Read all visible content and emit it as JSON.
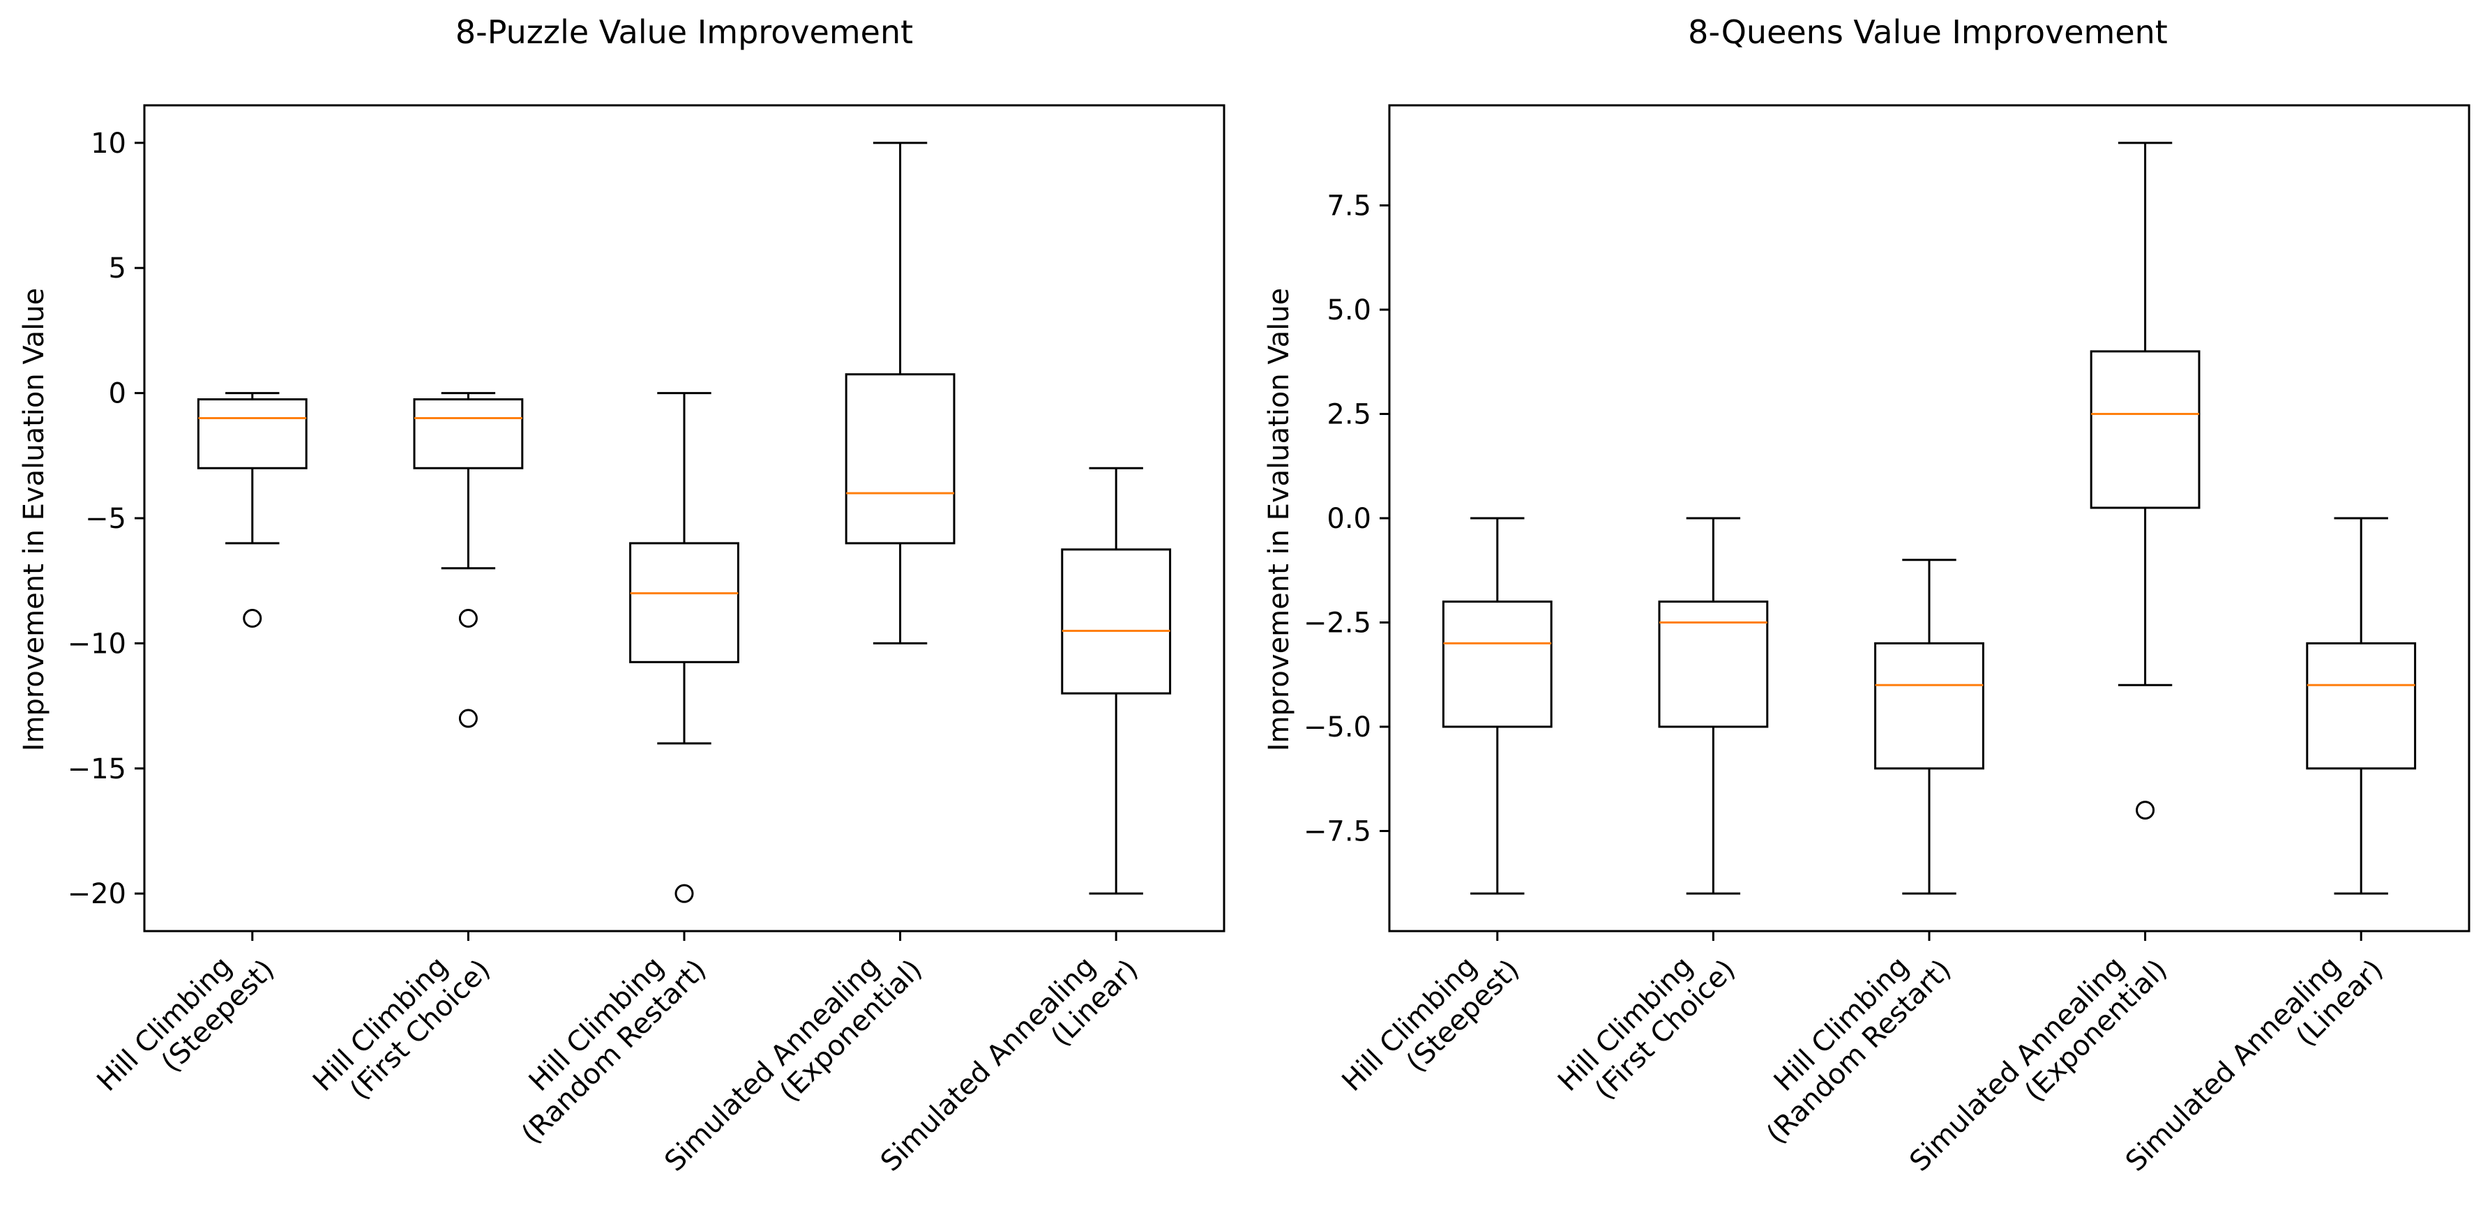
{
  "colors": {
    "box": "#000000",
    "median": "#ff7f0e",
    "background": "#ffffff"
  },
  "chart_data": [
    {
      "type": "box",
      "title": "8-Puzzle Value Improvement",
      "xlabel": "",
      "ylabel": "Improvement in Evaluation Value",
      "ylim": [
        -21.5,
        11.5
      ],
      "yticks": [
        10,
        5,
        0,
        -5,
        -10,
        -15,
        -20
      ],
      "ytick_labels": [
        "10",
        "5",
        "0",
        "−5",
        "−10",
        "−15",
        "−20"
      ],
      "categories": [
        [
          "Hill Climbing",
          "(Steepest)"
        ],
        [
          "Hill Climbing",
          "(First Choice)"
        ],
        [
          "Hill Climbing",
          "(Random Restart)"
        ],
        [
          "Simulated Annealing",
          "(Exponential)"
        ],
        [
          "Simulated Annealing",
          "(Linear)"
        ]
      ],
      "boxes": [
        {
          "whisker_low": -6,
          "q1": -3,
          "median": -1,
          "q3": -0.25,
          "whisker_high": 0,
          "outliers": [
            -9
          ]
        },
        {
          "whisker_low": -7,
          "q1": -3,
          "median": -1,
          "q3": -0.25,
          "whisker_high": 0,
          "outliers": [
            -9,
            -13
          ]
        },
        {
          "whisker_low": -14,
          "q1": -10.75,
          "median": -8,
          "q3": -6,
          "whisker_high": 0,
          "outliers": [
            -20
          ]
        },
        {
          "whisker_low": -10,
          "q1": -6,
          "median": -4,
          "q3": 0.75,
          "whisker_high": 10,
          "outliers": []
        },
        {
          "whisker_low": -20,
          "q1": -12,
          "median": -9.5,
          "q3": -6.25,
          "whisker_high": -3,
          "outliers": []
        }
      ]
    },
    {
      "type": "box",
      "title": "8-Queens Value Improvement",
      "xlabel": "",
      "ylabel": "Improvement in Evaluation Value",
      "ylim": [
        -9.9,
        9.9
      ],
      "yticks": [
        7.5,
        5.0,
        2.5,
        0.0,
        -2.5,
        -5.0,
        -7.5
      ],
      "ytick_labels": [
        "7.5",
        "5.0",
        "2.5",
        "0.0",
        "−2.5",
        "−5.0",
        "−7.5"
      ],
      "categories": [
        [
          "Hill Climbing",
          "(Steepest)"
        ],
        [
          "Hill Climbing",
          "(First Choice)"
        ],
        [
          "Hill Climbing",
          "(Random Restart)"
        ],
        [
          "Simulated Annealing",
          "(Exponential)"
        ],
        [
          "Simulated Annealing",
          "(Linear)"
        ]
      ],
      "boxes": [
        {
          "whisker_low": -9,
          "q1": -5,
          "median": -3,
          "q3": -2,
          "whisker_high": 0,
          "outliers": []
        },
        {
          "whisker_low": -9,
          "q1": -5,
          "median": -2.5,
          "q3": -2,
          "whisker_high": 0,
          "outliers": []
        },
        {
          "whisker_low": -9,
          "q1": -6,
          "median": -4,
          "q3": -3,
          "whisker_high": -1,
          "outliers": []
        },
        {
          "whisker_low": -4,
          "q1": 0.25,
          "median": 2.5,
          "q3": 4,
          "whisker_high": 9,
          "outliers": [
            -7
          ]
        },
        {
          "whisker_low": -9,
          "q1": -6,
          "median": -4,
          "q3": -3,
          "whisker_high": 0,
          "outliers": []
        }
      ]
    }
  ]
}
